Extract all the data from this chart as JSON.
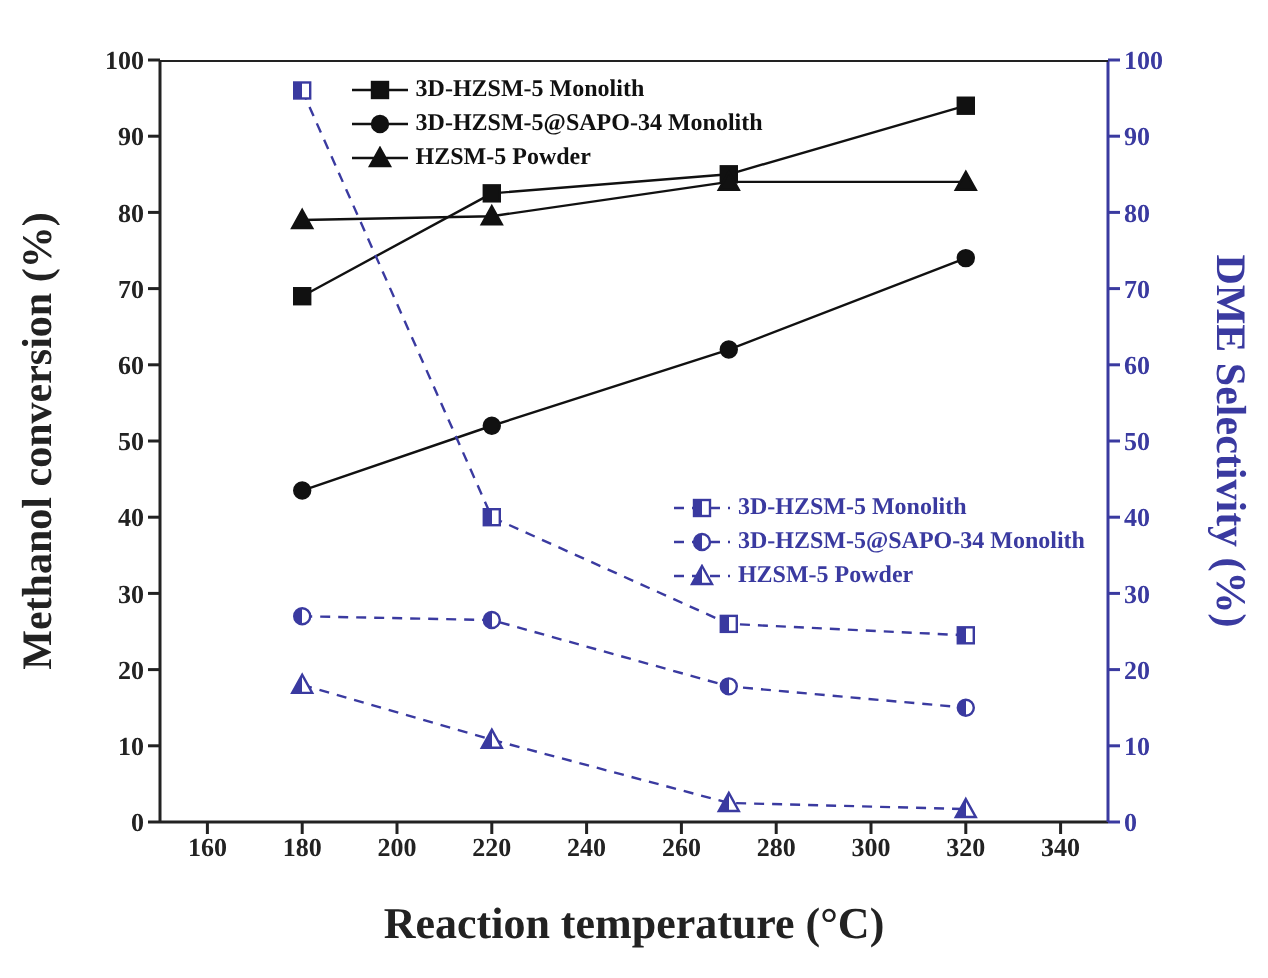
{
  "chart_data": {
    "type": "line",
    "xlabel": "Reaction temperature (°C)",
    "ylabel": "Methanol conversion (%)",
    "y2label": "DME Selectivity (%)",
    "x": [
      180,
      220,
      270,
      320
    ],
    "series": [
      {
        "name": "3D-HZSM-5 Monolith",
        "color": "#111111",
        "values": [
          69,
          82.5,
          85,
          94
        ],
        "marker": "square",
        "line_style": "solid"
      },
      {
        "name": "3D-HZSM-5@SAPO-34 Monolith",
        "color": "#111111",
        "values": [
          43.5,
          52,
          62,
          74
        ],
        "marker": "circle",
        "line_style": "solid"
      },
      {
        "name": "HZSM-5 Powder",
        "color": "#111111",
        "values": [
          79,
          79.5,
          84,
          84
        ],
        "marker": "triangle",
        "line_style": "solid"
      },
      {
        "name": "3D-HZSM-5 Monolith",
        "color": "#3a3aa0",
        "values": [
          96,
          40,
          26,
          24.5
        ],
        "marker": "square",
        "line_style": "dashed",
        "axis": "y2"
      },
      {
        "name": "3D-HZSM-5@SAPO-34 Monolith",
        "color": "#3a3aa0",
        "values": [
          27,
          26.5,
          17.8,
          15
        ],
        "marker": "circle",
        "line_style": "dashed",
        "axis": "y2"
      },
      {
        "name": "HZSM-5 Powder",
        "color": "#3a3aa0",
        "values": [
          18,
          10.8,
          2.5,
          1.7
        ],
        "marker": "triangle",
        "line_style": "dashed",
        "axis": "y2"
      }
    ],
    "xlim": [
      150,
      350
    ],
    "xticks": [
      160,
      180,
      200,
      220,
      240,
      260,
      280,
      300,
      320,
      340
    ],
    "ylim": [
      0,
      100
    ],
    "yticks": [
      0,
      10,
      20,
      30,
      40,
      50,
      60,
      70,
      80,
      90,
      100
    ],
    "y2lim": [
      0,
      100
    ],
    "y2ticks": [
      0,
      10,
      20,
      30,
      40,
      50,
      60,
      70,
      80,
      90,
      100
    ],
    "grid": false,
    "legend": "top right"
  }
}
